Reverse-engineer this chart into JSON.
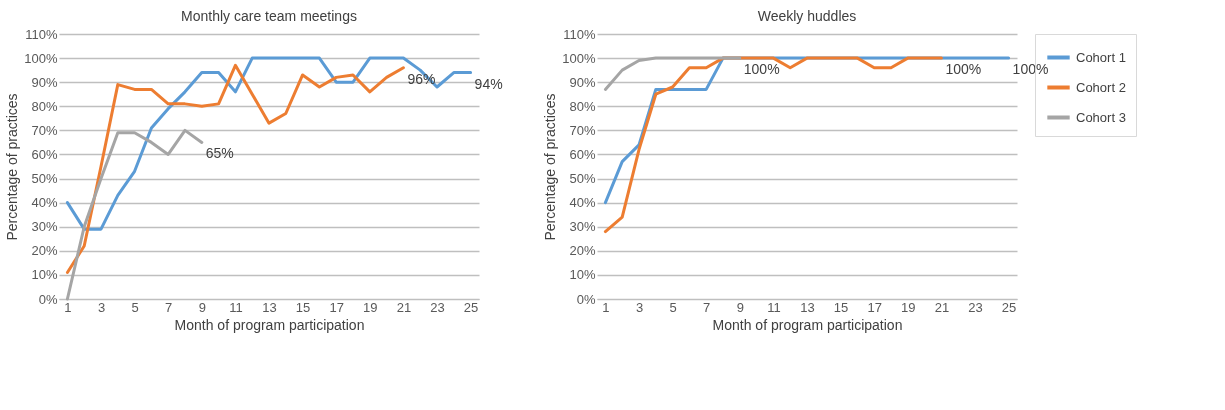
{
  "chart_data": [
    {
      "type": "line",
      "title": "Monthly care team meetings",
      "xlabel": "Month of program participation",
      "ylabel": "Percentage of practices",
      "xlim": [
        0.5,
        25.5
      ],
      "xticks": [
        1,
        3,
        5,
        7,
        9,
        11,
        13,
        15,
        17,
        19,
        21,
        23,
        25
      ],
      "ylim": [
        0,
        110
      ],
      "yticks": [
        {
          "value": 0,
          "label": "0%"
        },
        {
          "value": 10,
          "label": "10%"
        },
        {
          "value": 20,
          "label": "20%"
        },
        {
          "value": 30,
          "label": "30%"
        },
        {
          "value": 40,
          "label": "40%"
        },
        {
          "value": 50,
          "label": "50%"
        },
        {
          "value": 60,
          "label": "60%"
        },
        {
          "value": 70,
          "label": "70%"
        },
        {
          "value": 80,
          "label": "80%"
        },
        {
          "value": 90,
          "label": "90%"
        },
        {
          "value": 100,
          "label": "100%"
        },
        {
          "value": 110,
          "label": "110%"
        }
      ],
      "grid": "y",
      "legend": false,
      "x": [
        1,
        2,
        3,
        4,
        5,
        6,
        7,
        8,
        9,
        10,
        11,
        12,
        13,
        14,
        15,
        16,
        17,
        18,
        19,
        20,
        21,
        22,
        23,
        24,
        25
      ],
      "series": [
        {
          "color": "#5b9bd5",
          "values": [
            40,
            29,
            29,
            43,
            53,
            71,
            79,
            86,
            94,
            94,
            86,
            100,
            100,
            100,
            100,
            100,
            90,
            90,
            100,
            100,
            100,
            95,
            88,
            94,
            94
          ]
        },
        {
          "color": "#ed7d31",
          "values": [
            11,
            22,
            55,
            89,
            87,
            87,
            81,
            81,
            80,
            81,
            97,
            85,
            73,
            77,
            93,
            88,
            92,
            93,
            86,
            92,
            96,
            null,
            null,
            null,
            null
          ]
        },
        {
          "color": "#a5a5a5",
          "values": [
            0,
            30,
            50,
            69,
            69,
            65,
            60,
            70,
            65,
            null,
            null,
            null,
            null,
            null,
            null,
            null,
            null,
            null,
            null,
            null,
            null,
            null,
            null,
            null,
            null
          ]
        }
      ],
      "annotations": [
        {
          "text": "65%",
          "x": 9,
          "y": 65
        },
        {
          "text": "96%",
          "x": 21,
          "y": 96
        },
        {
          "text": "94%",
          "x": 25,
          "y": 94
        }
      ]
    },
    {
      "type": "line",
      "title": "Weekly huddles",
      "xlabel": "Month of program participation",
      "ylabel": "Percentage of practices",
      "xlim": [
        0.5,
        25.5
      ],
      "xticks": [
        1,
        3,
        5,
        7,
        9,
        11,
        13,
        15,
        17,
        19,
        21,
        23,
        25
      ],
      "ylim": [
        0,
        110
      ],
      "yticks": [
        {
          "value": 0,
          "label": "0%"
        },
        {
          "value": 10,
          "label": "10%"
        },
        {
          "value": 20,
          "label": "20%"
        },
        {
          "value": 30,
          "label": "30%"
        },
        {
          "value": 40,
          "label": "40%"
        },
        {
          "value": 50,
          "label": "50%"
        },
        {
          "value": 60,
          "label": "60%"
        },
        {
          "value": 70,
          "label": "70%"
        },
        {
          "value": 80,
          "label": "80%"
        },
        {
          "value": 90,
          "label": "90%"
        },
        {
          "value": 100,
          "label": "100%"
        },
        {
          "value": 110,
          "label": "110%"
        }
      ],
      "grid": "y",
      "legend": "right",
      "x": [
        1,
        2,
        3,
        4,
        5,
        6,
        7,
        8,
        9,
        10,
        11,
        12,
        13,
        14,
        15,
        16,
        17,
        18,
        19,
        20,
        21,
        22,
        23,
        24,
        25
      ],
      "series": [
        {
          "name": "Cohort 1",
          "color": "#5b9bd5",
          "values": [
            40,
            57,
            64,
            87,
            87,
            87,
            87,
            100,
            100,
            100,
            100,
            100,
            100,
            100,
            100,
            100,
            100,
            100,
            100,
            100,
            100,
            100,
            100,
            100,
            100
          ]
        },
        {
          "name": "Cohort 2",
          "color": "#ed7d31",
          "values": [
            28,
            34,
            62,
            85,
            88,
            96,
            96,
            100,
            100,
            100,
            100,
            96,
            100,
            100,
            100,
            100,
            96,
            96,
            100,
            100,
            100,
            null,
            null,
            null,
            null
          ]
        },
        {
          "name": "Cohort 3",
          "color": "#a5a5a5",
          "values": [
            87,
            95,
            99,
            100,
            100,
            100,
            100,
            100,
            100,
            null,
            null,
            null,
            null,
            null,
            null,
            null,
            null,
            null,
            null,
            null,
            null,
            null,
            null,
            null,
            null
          ]
        }
      ],
      "annotations": [
        {
          "text": "100%",
          "x": 9,
          "y": 100
        },
        {
          "text": "100%",
          "x": 21,
          "y": 100
        },
        {
          "text": "100%",
          "x": 25,
          "y": 100
        }
      ]
    }
  ]
}
